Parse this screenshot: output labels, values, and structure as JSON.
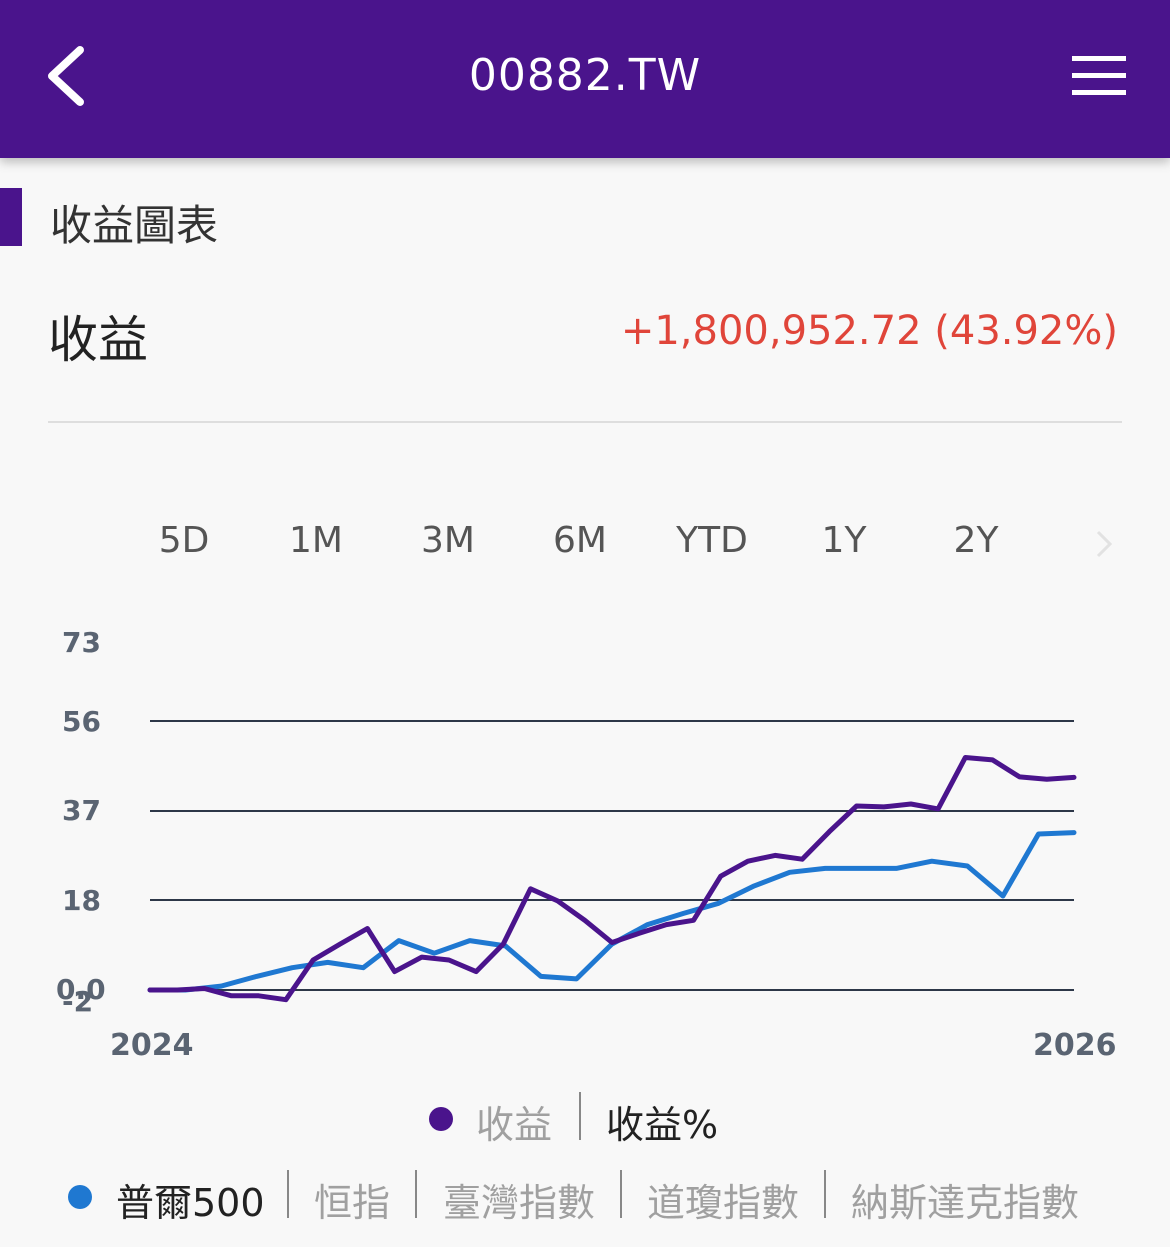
{
  "header": {
    "title": "00882.TW",
    "back_icon": "chevron-left-icon",
    "menu_icon": "hamburger-menu-icon"
  },
  "section": {
    "title": "收益圖表"
  },
  "summary": {
    "label": "收益",
    "value": "+1,800,952.72 (43.92%)",
    "value_color": "#e0453a"
  },
  "ranges": {
    "tabs": [
      "5D",
      "1M",
      "3M",
      "6M",
      "YTD",
      "1Y",
      "2Y"
    ],
    "next_icon": "chevron-right-icon"
  },
  "colors": {
    "accent": "#4a148c",
    "series_portfolio": "#4a148c",
    "series_benchmark": "#1f78d1"
  },
  "legend": {
    "primary": [
      {
        "label": "收益",
        "active": false
      },
      {
        "label": "收益%",
        "active": true
      }
    ],
    "benchmarks": [
      {
        "label": "普爾500",
        "active": true
      },
      {
        "label": "恒指",
        "active": false
      },
      {
        "label": "臺灣指數",
        "active": false
      },
      {
        "label": "道瓊指數",
        "active": false
      },
      {
        "label": "納斯達克指數",
        "active": false
      }
    ]
  },
  "chart_data": {
    "type": "line",
    "xlabel": "",
    "ylabel": "",
    "x_tick_labels": [
      "2024",
      "2026"
    ],
    "y_tick_labels": [
      "73",
      "56",
      "37",
      "18",
      "0.0",
      "-2"
    ],
    "ylim": [
      -2,
      73
    ],
    "grid": true,
    "legend_position": "bottom",
    "series": [
      {
        "name": "收益",
        "color": "#4a148c",
        "values": [
          0,
          0,
          0.3,
          -1.2,
          -1.2,
          -2,
          6.2,
          9.5,
          12.7,
          3.8,
          6.8,
          6.2,
          3.8,
          9.5,
          20.9,
          18.4,
          14.4,
          9.8,
          11.7,
          13.5,
          14.4,
          23.5,
          26.6,
          27.8,
          27,
          32.7,
          38,
          37.8,
          38.4,
          37.4,
          48,
          47.5,
          44,
          43.5,
          43.9
        ]
      },
      {
        "name": "普爾500",
        "color": "#1f78d1",
        "values": [
          0,
          0,
          0.8,
          2.8,
          4.6,
          5.7,
          4.6,
          10.2,
          7.6,
          10.2,
          9.1,
          2.8,
          2.3,
          9.5,
          13.5,
          15.8,
          17.9,
          21.5,
          24.3,
          25.1,
          25.1,
          25.1,
          26.6,
          25.6,
          19.4,
          32.2,
          32.5
        ]
      }
    ]
  }
}
